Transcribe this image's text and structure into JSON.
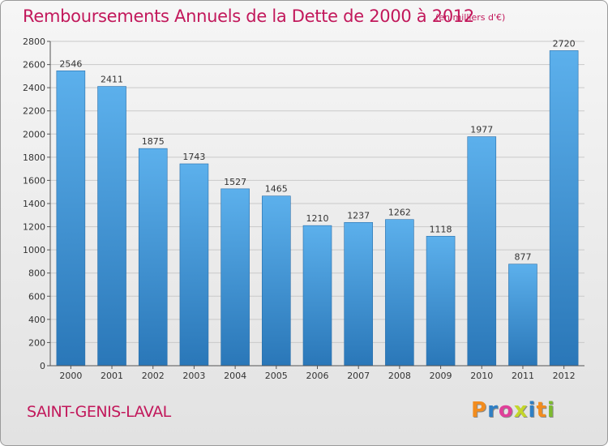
{
  "chart_data": {
    "type": "bar",
    "title": "Remboursements Annuels de la Dette de 2000 à 2012",
    "subtitle": "(en milliers d'€)",
    "categories": [
      "2000",
      "2001",
      "2002",
      "2003",
      "2004",
      "2005",
      "2006",
      "2007",
      "2008",
      "2009",
      "2010",
      "2011",
      "2012"
    ],
    "values": [
      2546,
      2411,
      1875,
      1743,
      1527,
      1465,
      1210,
      1237,
      1262,
      1118,
      1977,
      877,
      2720
    ],
    "ylim": [
      0,
      2800
    ],
    "yticks": [
      0,
      200,
      400,
      600,
      800,
      1000,
      1200,
      1400,
      1600,
      1800,
      2000,
      2200,
      2400,
      2600,
      2800
    ],
    "grid": true,
    "bar_color": "#3d8fd1"
  },
  "footer": {
    "place": "SAINT-GENIS-LAVAL",
    "logo_letters": [
      "P",
      "r",
      "o",
      "x",
      "i",
      "t",
      "i"
    ],
    "logo_colors": [
      "#f28c1e",
      "#2f7fc4",
      "#e0409a",
      "#c4d62a",
      "#2f7fc4",
      "#f28c1e",
      "#7dbb2f"
    ]
  }
}
